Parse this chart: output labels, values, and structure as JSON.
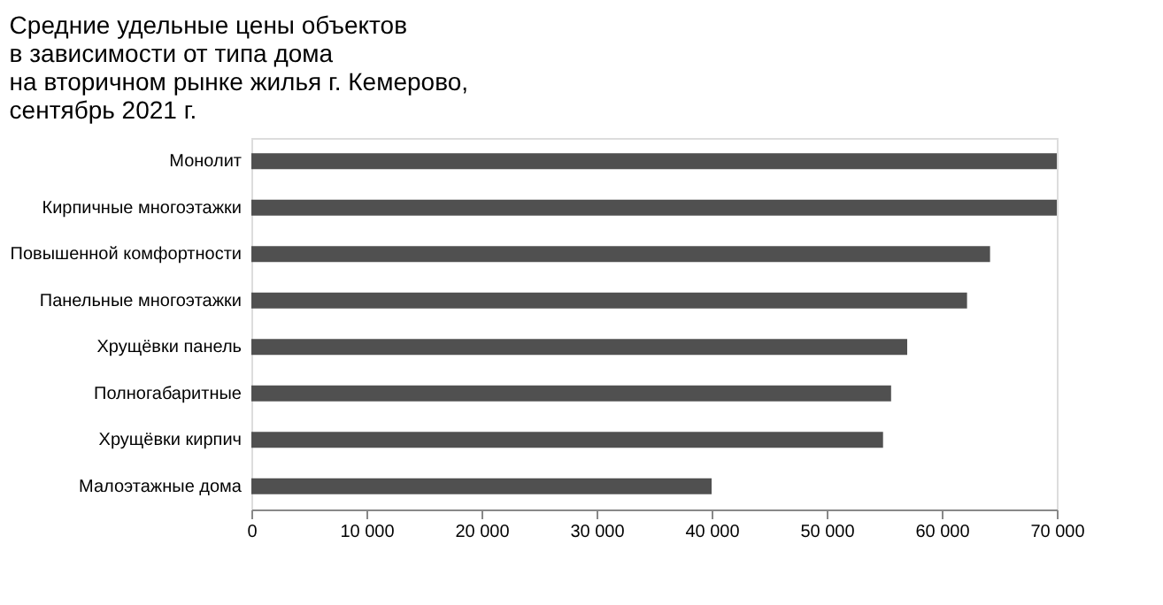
{
  "chart_data": {
    "type": "bar",
    "orientation": "horizontal",
    "title": "Средние удельные цены объектов\nв зависимости от типа дома\nна вторичном рынке жилья г. Кемерово,\nсентябрь 2021 г.",
    "categories": [
      "Монолит",
      "Кирпичные многоэтажки",
      "Повышенной комфортности",
      "Панельные многоэтажки",
      "Хрущёвки панель",
      "Полногабаритные",
      "Хрущёвки кирпич",
      "Малоэтажные дома"
    ],
    "values": [
      70000,
      70000,
      64200,
      62200,
      57000,
      55600,
      54900,
      40000
    ],
    "color": "#505050",
    "xlim": [
      0,
      70000
    ],
    "xticks": [
      0,
      {
        "value": 10000,
        "label": "10 000"
      },
      {
        "value": 20000,
        "label": "20 000"
      },
      {
        "value": 30000,
        "label": "30 000"
      },
      {
        "value": 40000,
        "label": "40 000"
      },
      {
        "value": 50000,
        "label": "50 000"
      },
      {
        "value": 60000,
        "label": "60 000"
      },
      {
        "value": 70000,
        "label": "70 000"
      }
    ],
    "grid": false
  }
}
